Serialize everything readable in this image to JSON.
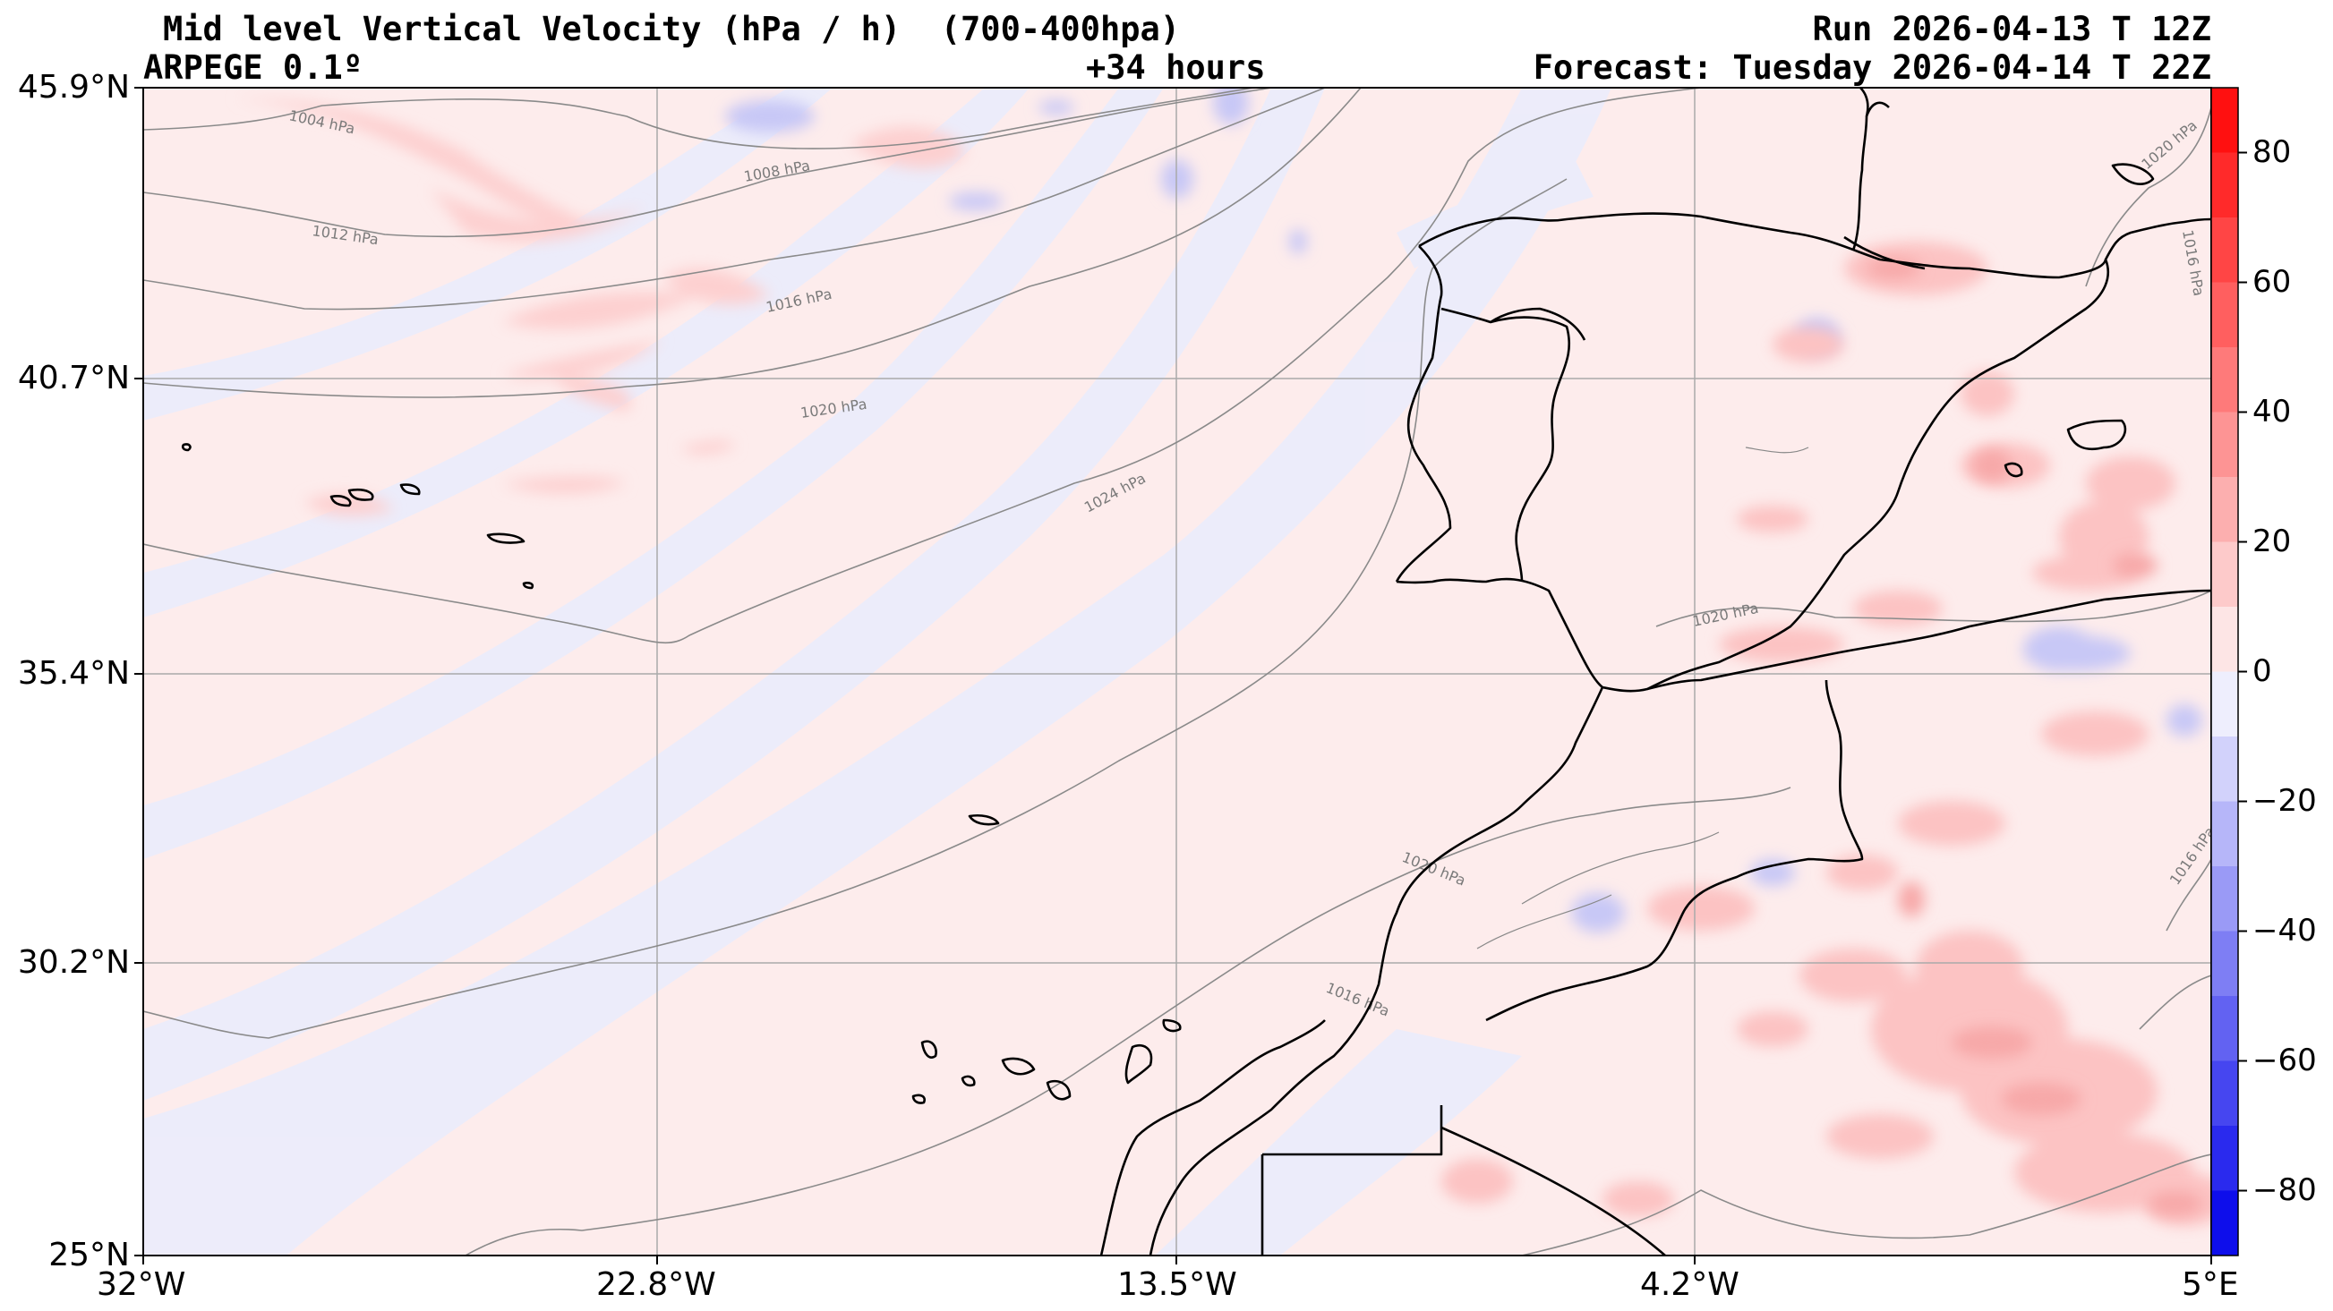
{
  "header": {
    "title": "Mid level Vertical Velocity (hPa / h)  (700-400hpa)",
    "model": "ARPEGE 0.1º",
    "lead_time": "+34 hours",
    "run": "Run 2026-04-13 T 12Z",
    "forecast": "Forecast: Tuesday 2026-04-14 T 22Z"
  },
  "map": {
    "lat_ticks": [
      "45.9°N",
      "40.7°N",
      "35.4°N",
      "30.2°N",
      "25°N"
    ],
    "lon_ticks": [
      "32°W",
      "22.8°W",
      "13.5°W",
      "4.2°W",
      "5°E"
    ],
    "lat_values": [
      45.9,
      40.7,
      35.4,
      30.2,
      25.0
    ],
    "lon_values": [
      -32.0,
      -22.8,
      -13.5,
      -4.2,
      5.0
    ],
    "isobar_labels": [
      "1004 hPa",
      "1008 hPa",
      "1012 hPa",
      "1016 hPa",
      "1020 hPa",
      "1024 hPa",
      "1020 hPa",
      "1020 hPa",
      "1016 hPa",
      "1020 hPa",
      "1016 hPa",
      "1016 hPa"
    ],
    "colors": {
      "ocean_neutral": "#eeeefc",
      "light_positive": "#fdecec",
      "positive": "#fdd0d0",
      "strong_positive": "#f7a9a9",
      "light_negative": "#dcdcfb",
      "negative": "#b8b8f5",
      "coastline": "#000000",
      "isobar": "#888888",
      "grid": "#aaaaaa"
    }
  },
  "colorbar": {
    "ticks": [
      "80",
      "60",
      "40",
      "20",
      "0",
      "−20",
      "−40",
      "−60",
      "−80"
    ],
    "tick_values": [
      80,
      60,
      40,
      20,
      0,
      -20,
      -40,
      -60,
      -80
    ],
    "range": [
      -90,
      90
    ],
    "levels": [
      {
        "from": 80,
        "to": 90,
        "color": "#ff1010"
      },
      {
        "from": 70,
        "to": 80,
        "color": "#ff2a2a"
      },
      {
        "from": 60,
        "to": 70,
        "color": "#ff4545"
      },
      {
        "from": 50,
        "to": 60,
        "color": "#ff5f5f"
      },
      {
        "from": 40,
        "to": 50,
        "color": "#fe7a7a"
      },
      {
        "from": 30,
        "to": 40,
        "color": "#fd9494"
      },
      {
        "from": 20,
        "to": 30,
        "color": "#fcafaf"
      },
      {
        "from": 10,
        "to": 20,
        "color": "#fdcaca"
      },
      {
        "from": 0,
        "to": 10,
        "color": "#fde5e5"
      },
      {
        "from": -10,
        "to": 0,
        "color": "#eeeefd"
      },
      {
        "from": -20,
        "to": -10,
        "color": "#d2d2fb"
      },
      {
        "from": -30,
        "to": -20,
        "color": "#b6b6f9"
      },
      {
        "from": -40,
        "to": -30,
        "color": "#9a9af6"
      },
      {
        "from": -50,
        "to": -40,
        "color": "#7e7ef4"
      },
      {
        "from": -60,
        "to": -50,
        "color": "#6262f2"
      },
      {
        "from": -70,
        "to": -60,
        "color": "#4646f0"
      },
      {
        "from": -80,
        "to": -70,
        "color": "#2a2aee"
      },
      {
        "from": -90,
        "to": -80,
        "color": "#0e0eeb"
      }
    ]
  }
}
